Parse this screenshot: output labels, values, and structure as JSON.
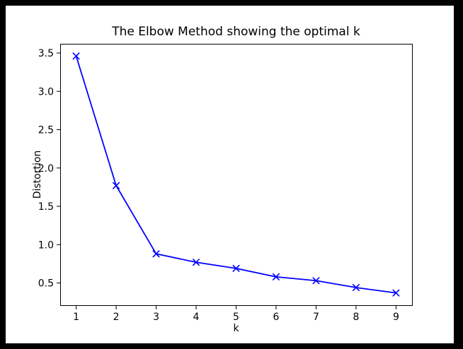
{
  "figure": {
    "frame_color": "#000000",
    "background_color": "#ffffff",
    "axes_color": "#000000"
  },
  "chart_data": {
    "type": "line",
    "title": "The Elbow Method showing the optimal k",
    "xlabel": "k",
    "ylabel": "Distortion",
    "x": [
      1,
      2,
      3,
      4,
      5,
      6,
      7,
      8,
      9
    ],
    "series": [
      {
        "name": "distortion",
        "color": "#0000ff",
        "marker": "x",
        "values": [
          3.46,
          1.77,
          0.88,
          0.77,
          0.69,
          0.58,
          0.53,
          0.44,
          0.37
        ]
      }
    ],
    "xlim": [
      0.6,
      9.4
    ],
    "ylim": [
      0.21,
      3.62
    ],
    "x_ticks": [
      1,
      2,
      3,
      4,
      5,
      6,
      7,
      8,
      9
    ],
    "x_tick_labels": [
      "1",
      "2",
      "3",
      "4",
      "5",
      "6",
      "7",
      "8",
      "9"
    ],
    "y_ticks": [
      0.5,
      1.0,
      1.5,
      2.0,
      2.5,
      3.0,
      3.5
    ],
    "y_tick_labels": [
      "0.5",
      "1.0",
      "1.5",
      "2.0",
      "2.5",
      "3.0",
      "3.5"
    ],
    "grid": false,
    "legend": "none"
  }
}
